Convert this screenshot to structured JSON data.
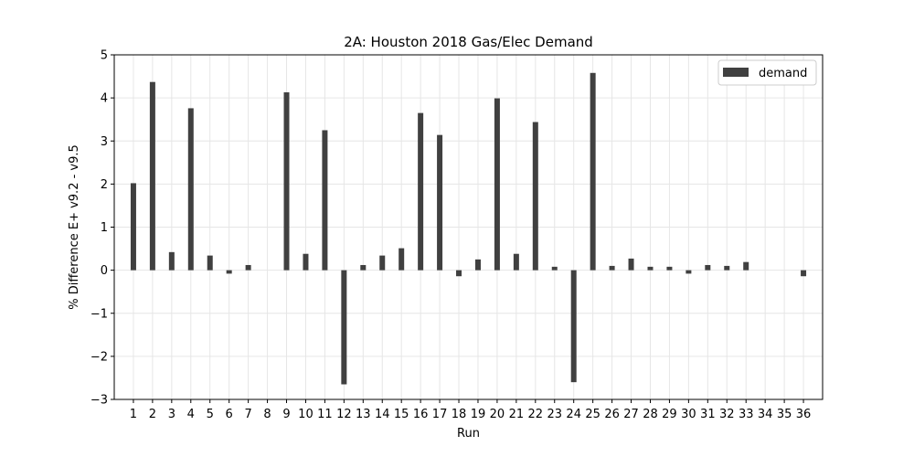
{
  "chart_data": {
    "type": "bar",
    "title": "2A: Houston 2018 Gas/Elec Demand",
    "xlabel": "Run",
    "ylabel": "% Difference E+ v9.2 - v9.5",
    "ylim": [
      -3,
      5
    ],
    "yticks": [
      -3,
      -2,
      -1,
      0,
      1,
      2,
      3,
      4,
      5
    ],
    "ytick_labels": [
      "−3",
      "−2",
      "−1",
      "0",
      "1",
      "2",
      "3",
      "4",
      "5"
    ],
    "grid": true,
    "legend_position": "top-right",
    "categories": [
      "1",
      "2",
      "3",
      "4",
      "5",
      "6",
      "7",
      "8",
      "9",
      "10",
      "11",
      "12",
      "13",
      "14",
      "15",
      "16",
      "17",
      "18",
      "19",
      "20",
      "21",
      "22",
      "23",
      "24",
      "25",
      "26",
      "27",
      "28",
      "29",
      "30",
      "31",
      "32",
      "33",
      "34",
      "35",
      "36"
    ],
    "series": [
      {
        "name": "demand",
        "color": "#404040",
        "values": [
          2.02,
          4.37,
          0.42,
          3.76,
          0.34,
          -0.08,
          0.12,
          0.0,
          4.13,
          0.38,
          3.25,
          -2.65,
          0.12,
          0.34,
          0.51,
          3.65,
          3.14,
          -0.14,
          0.25,
          3.99,
          0.38,
          3.44,
          0.08,
          -2.6,
          4.58,
          0.1,
          0.27,
          0.08,
          0.08,
          -0.08,
          0.12,
          0.1,
          0.19,
          0.0,
          0.0,
          -0.14
        ]
      }
    ]
  }
}
